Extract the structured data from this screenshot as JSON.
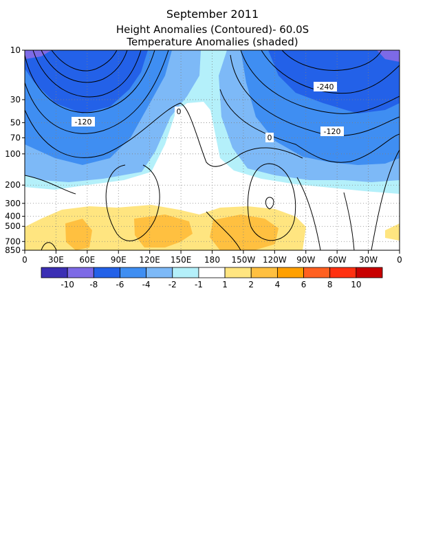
{
  "title": "September 2011",
  "subtitle": "Height Anomalies (Contoured)- 60.0S",
  "subtitle2": "Temperature Anomalies (shaded)",
  "chart_data": {
    "type": "heatmap",
    "x_ticks": [
      "0",
      "30E",
      "60E",
      "90E",
      "120E",
      "150E",
      "180",
      "150W",
      "120W",
      "90W",
      "60W",
      "30W",
      "0"
    ],
    "x_values": [
      0,
      30,
      60,
      90,
      120,
      150,
      180,
      210,
      240,
      270,
      300,
      330,
      360
    ],
    "y_ticks": [
      "10",
      "30",
      "50",
      "70",
      "100",
      "200",
      "300",
      "400",
      "500",
      "700",
      "850"
    ],
    "y_values": [
      10,
      30,
      50,
      70,
      100,
      200,
      300,
      400,
      500,
      700,
      850
    ],
    "y_scale": "log",
    "y_inverted": true,
    "xlim": [
      0,
      360
    ],
    "ylim": [
      850,
      10
    ],
    "grid": true,
    "contour_labels": [
      "-240",
      "-120",
      "0",
      "-120",
      "0"
    ],
    "colorbar": {
      "labels": [
        "-10",
        "-8",
        "-6",
        "-4",
        "-2",
        "-1",
        "1",
        "2",
        "4",
        "6",
        "8",
        "10"
      ],
      "colors": [
        "#3b2fb4",
        "#7d6ae6",
        "#2361e8",
        "#3f8ef2",
        "#7db9f7",
        "#b4f0fa",
        "#ffffff",
        "#ffe580",
        "#ffc040",
        "#ffa000",
        "#ff6020",
        "#ff3010",
        "#c80000"
      ]
    }
  }
}
